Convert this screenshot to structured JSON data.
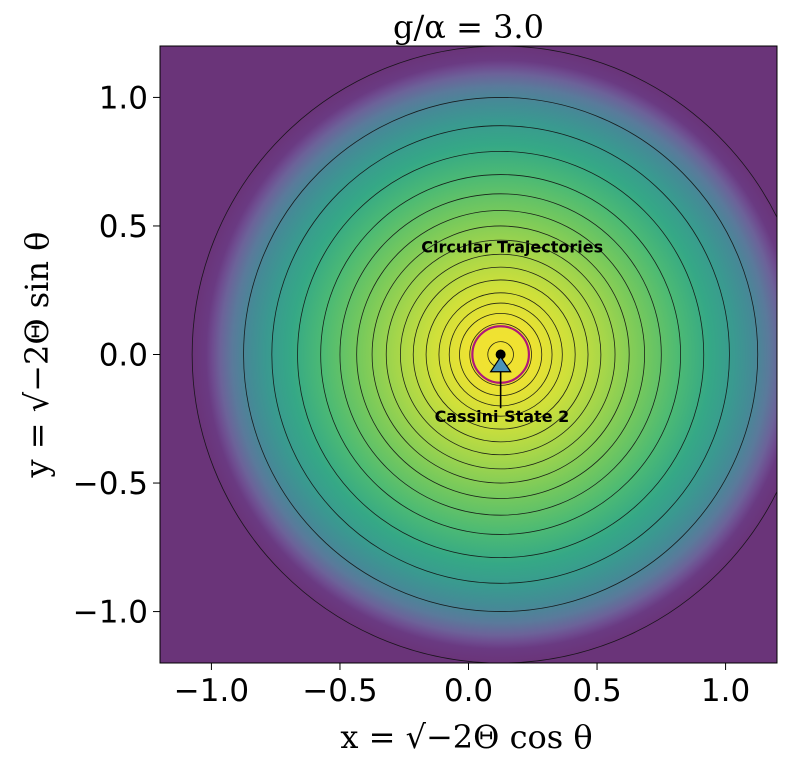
{
  "chart_data": {
    "type": "contour",
    "title": "g/α = 3.0",
    "xlabel": "x = √−2Θ cos θ",
    "ylabel": "y = √−2Θ sin θ",
    "xlim": [
      -1.2,
      1.2
    ],
    "ylim": [
      -1.2,
      1.2
    ],
    "xticks": [
      -1.0,
      -0.5,
      0.0,
      0.5,
      1.0
    ],
    "yticks": [
      -1.0,
      -0.5,
      0.0,
      0.5,
      1.0
    ],
    "xtick_labels": [
      "−1.0",
      "−0.5",
      "0.0",
      "0.5",
      "1.0"
    ],
    "ytick_labels": [
      "−1.0",
      "−0.5",
      "0.0",
      "0.5",
      "1.0"
    ],
    "colormap": "viridis",
    "background_color": "#6a3479",
    "contour_center": [
      0.125,
      0.0
    ],
    "contour_radii": [
      0.05,
      0.12,
      0.16,
      0.2,
      0.24,
      0.29,
      0.34,
      0.39,
      0.445,
      0.5,
      0.56,
      0.625,
      0.7,
      0.79,
      0.89,
      1.0,
      1.2
    ],
    "contour_color": "#111111",
    "separatrix": {
      "radius": 0.11,
      "color": "#b0177a"
    },
    "points": [
      {
        "name": "Cassini State 2",
        "x": 0.125,
        "y": 0.0,
        "marker": "circle",
        "color": "#000000"
      },
      {
        "name": "triangle-marker",
        "x": 0.125,
        "y": -0.04,
        "marker": "triangle",
        "color": "#4a93b8"
      }
    ],
    "annotations": [
      {
        "text": "Circular Trajectories",
        "x": 0.17,
        "y": 0.42
      },
      {
        "text": "Cassini State 2",
        "x": 0.13,
        "y": -0.24,
        "arrow_to": [
          0.125,
          -0.03
        ]
      }
    ]
  }
}
